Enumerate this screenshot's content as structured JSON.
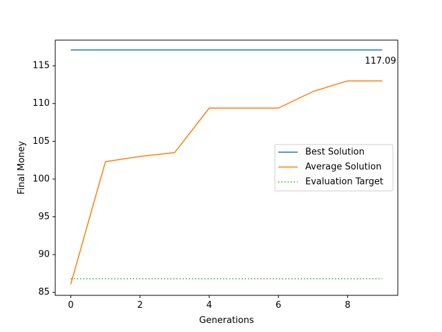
{
  "chart_data": {
    "type": "line",
    "title": "",
    "xlabel": "Generations",
    "ylabel": "Final Money",
    "xlim": [
      -0.45,
      9.45
    ],
    "ylim": [
      84.6,
      118.4
    ],
    "xticks": [
      0,
      2,
      4,
      6,
      8
    ],
    "yticks": [
      85,
      90,
      95,
      100,
      105,
      110,
      115
    ],
    "grid": false,
    "legend_position": "center-right",
    "x": [
      0,
      1,
      2,
      3,
      4,
      5,
      6,
      7,
      8,
      9
    ],
    "series": [
      {
        "name": "Best Solution",
        "color": "#1f77b4",
        "linestyle": "solid",
        "values": [
          117.09,
          117.09,
          117.09,
          117.09,
          117.09,
          117.09,
          117.09,
          117.09,
          117.09,
          117.09
        ]
      },
      {
        "name": "Average Solution",
        "color": "#ff7f0e",
        "linestyle": "solid",
        "values": [
          86.1,
          102.3,
          103.0,
          103.5,
          109.4,
          109.4,
          109.4,
          111.6,
          113.0,
          113.0
        ]
      },
      {
        "name": "Evaluation Target",
        "color": "#2ca02c",
        "linestyle": "dotted",
        "values": [
          86.8,
          86.8,
          86.8,
          86.8,
          86.8,
          86.8,
          86.8,
          86.8,
          86.8,
          86.8
        ]
      }
    ],
    "annotations": [
      {
        "text": "117.09",
        "x": 8.95,
        "y": 115.6
      }
    ]
  }
}
